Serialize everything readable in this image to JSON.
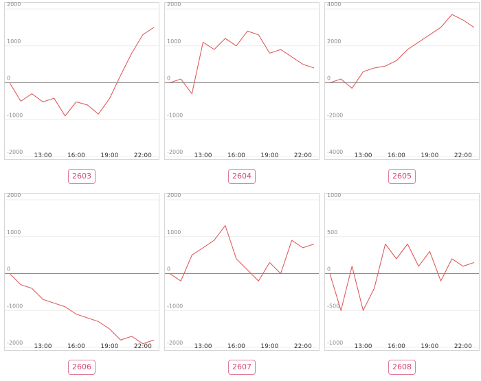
{
  "colors": {
    "line": "#e05a5a",
    "zero_line": "#8c8c8c",
    "grid": "#ececec",
    "button": "#d0467a"
  },
  "chart_data": [
    {
      "type": "line",
      "code": "2603",
      "x": [
        "10:00",
        "11:00",
        "12:00",
        "13:00",
        "14:00",
        "15:00",
        "16:00",
        "17:00",
        "18:00",
        "19:00",
        "20:00",
        "21:00",
        "22:00",
        "23:00"
      ],
      "xticks": [
        "13:00",
        "16:00",
        "19:00",
        "22:00"
      ],
      "yticks": [
        2000,
        1000,
        0,
        -1000,
        -2000
      ],
      "ylim": [
        -2000,
        2000
      ],
      "values": [
        0,
        -500,
        -300,
        -520,
        -420,
        -900,
        -520,
        -600,
        -850,
        -430,
        200,
        800,
        1300,
        1500
      ]
    },
    {
      "type": "line",
      "code": "2604",
      "x": [
        "10:00",
        "11:00",
        "12:00",
        "13:00",
        "14:00",
        "15:00",
        "16:00",
        "17:00",
        "18:00",
        "19:00",
        "20:00",
        "21:00",
        "22:00",
        "23:00"
      ],
      "xticks": [
        "13:00",
        "16:00",
        "19:00",
        "22:00"
      ],
      "yticks": [
        2000,
        1000,
        0,
        -1000,
        -2000
      ],
      "ylim": [
        -2000,
        2000
      ],
      "values": [
        0,
        100,
        -300,
        1100,
        900,
        1200,
        1000,
        1400,
        1300,
        800,
        900,
        700,
        500,
        400
      ]
    },
    {
      "type": "line",
      "code": "2605",
      "x": [
        "10:00",
        "11:00",
        "12:00",
        "13:00",
        "14:00",
        "15:00",
        "16:00",
        "17:00",
        "18:00",
        "19:00",
        "20:00",
        "21:00",
        "22:00",
        "23:00"
      ],
      "xticks": [
        "13:00",
        "16:00",
        "19:00",
        "22:00"
      ],
      "yticks": [
        4000,
        2000,
        0,
        -2000,
        -4000
      ],
      "ylim": [
        -4000,
        4000
      ],
      "values": [
        0,
        200,
        -300,
        600,
        800,
        900,
        1200,
        1800,
        2200,
        2600,
        3000,
        3700,
        3400,
        3000
      ]
    },
    {
      "type": "line",
      "code": "2606",
      "x": [
        "10:00",
        "11:00",
        "12:00",
        "13:00",
        "14:00",
        "15:00",
        "16:00",
        "17:00",
        "18:00",
        "19:00",
        "20:00",
        "21:00",
        "22:00",
        "23:00"
      ],
      "xticks": [
        "13:00",
        "16:00",
        "19:00",
        "22:00"
      ],
      "yticks": [
        2000,
        1000,
        0,
        -1000,
        -2000
      ],
      "ylim": [
        -2000,
        2000
      ],
      "values": [
        0,
        -300,
        -400,
        -700,
        -800,
        -900,
        -1100,
        -1200,
        -1300,
        -1500,
        -1800,
        -1700,
        -1900,
        -1800
      ]
    },
    {
      "type": "line",
      "code": "2607",
      "x": [
        "10:00",
        "11:00",
        "12:00",
        "13:00",
        "14:00",
        "15:00",
        "16:00",
        "17:00",
        "18:00",
        "19:00",
        "20:00",
        "21:00",
        "22:00",
        "23:00"
      ],
      "xticks": [
        "13:00",
        "16:00",
        "19:00",
        "22:00"
      ],
      "yticks": [
        2000,
        1000,
        0,
        -1000,
        -2000
      ],
      "ylim": [
        -2000,
        2000
      ],
      "values": [
        0,
        -200,
        500,
        700,
        900,
        1300,
        400,
        100,
        -200,
        300,
        0,
        900,
        700,
        800
      ]
    },
    {
      "type": "line",
      "code": "2608",
      "x": [
        "10:00",
        "11:00",
        "12:00",
        "13:00",
        "14:00",
        "15:00",
        "16:00",
        "17:00",
        "18:00",
        "19:00",
        "20:00",
        "21:00",
        "22:00",
        "23:00"
      ],
      "xticks": [
        "13:00",
        "16:00",
        "19:00",
        "22:00"
      ],
      "yticks": [
        1000,
        500,
        0,
        -500,
        -1000
      ],
      "ylim": [
        -1000,
        1000
      ],
      "values": [
        0,
        -500,
        100,
        -500,
        -200,
        400,
        200,
        400,
        100,
        300,
        -100,
        200,
        100,
        150
      ]
    }
  ]
}
